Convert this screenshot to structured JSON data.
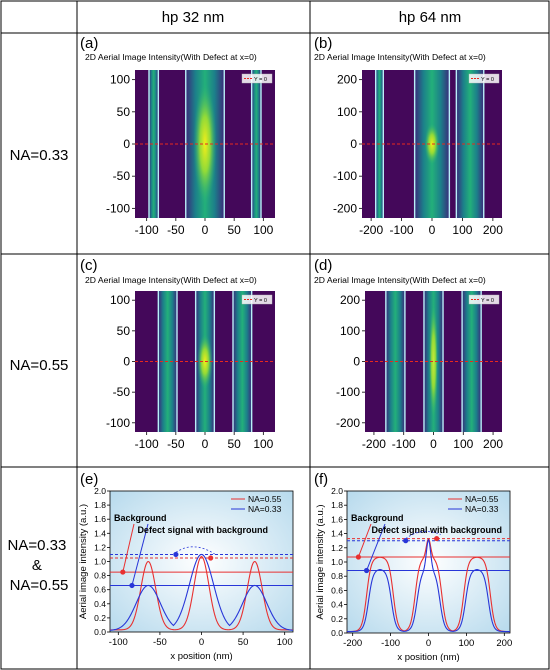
{
  "table": {
    "col_headers": [
      "hp 32 nm",
      "hp 64 nm"
    ],
    "row_labels": [
      "NA=0.33",
      "NA=0.55",
      "NA=0.33\n&\nNA=0.55"
    ]
  },
  "colors": {
    "background_dark": "#44085a",
    "band_green": "#23b07a",
    "band_edge": "#b8f0f8",
    "hotspot_yellow": "#f5ee18",
    "hotspot_green": "#9fe030",
    "cut_line": "#e8281e",
    "na055_line": "#e83030",
    "na033_line": "#2836d8",
    "bg_gradient_edge": "#b7daed",
    "bg_gradient_center": "#ffffff"
  },
  "chart_data": [
    {
      "panel": "(a)",
      "type": "heatmap",
      "title": "2D Aerial Image Intensity(With Defect at x=0)",
      "legend": "Y = 0",
      "legend_position": "top-right",
      "xlim": [
        -120,
        120
      ],
      "ylim": [
        -115,
        115
      ],
      "x_ticks": [
        "-100",
        "-50",
        "0",
        "50",
        "100"
      ],
      "y_ticks": [
        "100",
        "50",
        "0",
        "-50",
        "-100"
      ],
      "bright_bands_x": [
        [
          -96,
          -80
        ],
        [
          -33,
          33
        ],
        [
          80,
          96
        ]
      ],
      "hotspot": {
        "x": 0,
        "y": 0,
        "w": 18,
        "h": 190,
        "level": "high"
      },
      "cut_y": 0
    },
    {
      "panel": "(b)",
      "type": "heatmap",
      "title": "2D Aerial Image Intensity(With Defect at x=0)",
      "legend": "Y = 0",
      "legend_position": "top-right",
      "xlim": [
        -230,
        230
      ],
      "ylim": [
        -230,
        230
      ],
      "x_ticks": [
        "-200",
        "-100",
        "0",
        "100",
        "200"
      ],
      "y_ticks": [
        "200",
        "100",
        "0",
        "-100",
        "-200"
      ],
      "bright_bands_x": [
        [
          -185,
          -160
        ],
        [
          -57,
          57
        ],
        [
          80,
          170
        ]
      ],
      "hotspot": {
        "x": 0,
        "y": 0,
        "w": 22,
        "h": 130,
        "level": "medium"
      },
      "cut_y": 0
    },
    {
      "panel": "(c)",
      "type": "heatmap",
      "title": "2D Aerial Image Intensity(With Defect at x=0)",
      "legend": "Y = 0",
      "legend_position": "top-right",
      "xlim": [
        -120,
        120
      ],
      "ylim": [
        -115,
        115
      ],
      "x_ticks": [
        "-100",
        "-50",
        "0",
        "50",
        "100"
      ],
      "y_ticks": [
        "100",
        "50",
        "0",
        "-50",
        "-100"
      ],
      "bright_bands_x": [
        [
          -80,
          -48
        ],
        [
          -16,
          16
        ],
        [
          48,
          80
        ]
      ],
      "hotspot": {
        "x": 0,
        "y": 0,
        "w": 12,
        "h": 90,
        "level": "medium"
      },
      "cut_y": 0
    },
    {
      "panel": "(d)",
      "type": "heatmap",
      "title": "2D Aerial Image Intensity(With Defect at x=0)",
      "legend": "Y = 0",
      "legend_position": "top-right",
      "xlim": [
        -230,
        230
      ],
      "ylim": [
        -230,
        230
      ],
      "x_ticks": [
        "-200",
        "-100",
        "0",
        "100",
        "200"
      ],
      "y_ticks": [
        "200",
        "100",
        "0",
        "-100",
        "-200"
      ],
      "bright_bands_x": [
        [
          -160,
          -96
        ],
        [
          -32,
          32
        ],
        [
          96,
          160
        ]
      ],
      "hotspot": {
        "x": 0,
        "y": 0,
        "w": 14,
        "h": 380,
        "level": "low"
      },
      "cut_y": 0
    },
    {
      "panel": "(e)",
      "type": "line",
      "xlabel": "x position (nm)",
      "ylabel": "Aerial image intensity (a.u.)",
      "xlim": [
        -110,
        110
      ],
      "ylim": [
        0,
        2.0
      ],
      "x_ticks": [
        -100,
        -50,
        0,
        50,
        100
      ],
      "y_ticks": [
        0.0,
        0.2,
        0.4,
        0.6,
        0.8,
        1.0,
        1.2,
        1.4,
        1.6,
        1.8,
        2.0
      ],
      "legend_position": "top-right",
      "series": [
        {
          "name": "NA=0.55",
          "kind": "sinus",
          "period": 64,
          "centers": [
            -64,
            0,
            64
          ],
          "peak": 1.0,
          "peak_defect": 1.07,
          "min": 0.03,
          "width": 16,
          "background": 0.85,
          "defect_background": 1.05
        },
        {
          "name": "NA=0.33",
          "kind": "sinus",
          "period": 64,
          "centers": [
            -64,
            0,
            64
          ],
          "peak": 0.66,
          "peak_defect": 1.1,
          "min": 0.02,
          "width": 26,
          "background": 0.66,
          "defect_background": 1.1
        }
      ],
      "annotations": [
        "Background",
        "Defect signal with background"
      ]
    },
    {
      "panel": "(f)",
      "type": "line",
      "xlabel": "x position (nm)",
      "ylabel": "Aerial image intensity (a.u.)",
      "xlim": [
        -215,
        215
      ],
      "ylim": [
        0,
        2.0
      ],
      "x_ticks": [
        -200,
        -100,
        0,
        100,
        200
      ],
      "y_ticks": [
        0.0,
        0.2,
        0.4,
        0.6,
        0.8,
        1.0,
        1.2,
        1.4,
        1.6,
        1.8,
        2.0
      ],
      "legend_position": "top-right",
      "series": [
        {
          "name": "NA=0.55",
          "kind": "square",
          "period": 128,
          "centers": [
            -128,
            0,
            128
          ],
          "peak": 1.07,
          "peak_defect": 1.33,
          "min": 0.02,
          "width": 70,
          "background": 1.07,
          "defect_background": 1.33
        },
        {
          "name": "NA=0.33",
          "kind": "square",
          "period": 128,
          "centers": [
            -128,
            0,
            128
          ],
          "peak": 0.9,
          "peak_defect": 1.32,
          "min": 0.02,
          "width": 60,
          "background": 0.88,
          "defect_background": 1.3
        }
      ],
      "annotations": [
        "Background",
        "Defect signal with background"
      ]
    }
  ]
}
